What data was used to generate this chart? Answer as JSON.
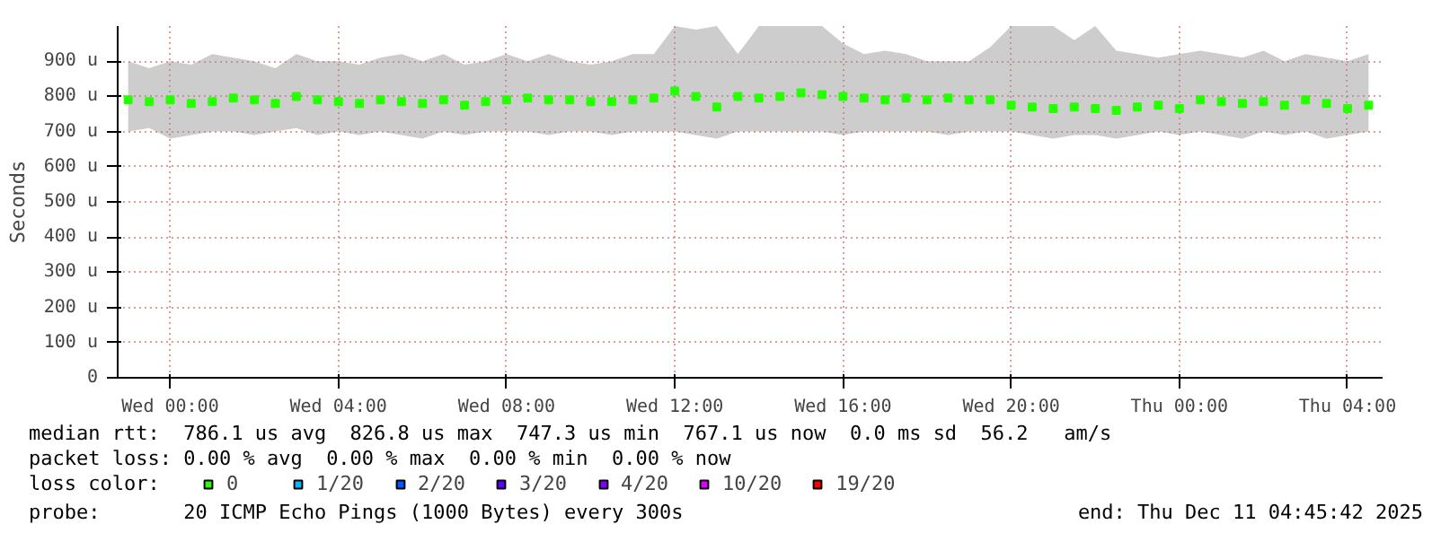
{
  "chart_data": {
    "type": "scatter",
    "ylabel": "Seconds",
    "marker": "square",
    "grid": true,
    "legend": "bottom",
    "legend_title": "loss color:",
    "xlim": [
      "2025-12-09T22:45",
      "2025-12-11T04:50"
    ],
    "xticks": [
      {
        "value": "2025-12-10T00:00",
        "label": "Wed 00:00"
      },
      {
        "value": "2025-12-10T04:00",
        "label": "Wed 04:00"
      },
      {
        "value": "2025-12-10T08:00",
        "label": "Wed 08:00"
      },
      {
        "value": "2025-12-10T12:00",
        "label": "Wed 12:00"
      },
      {
        "value": "2025-12-10T16:00",
        "label": "Wed 16:00"
      },
      {
        "value": "2025-12-10T20:00",
        "label": "Wed 20:00"
      },
      {
        "value": "2025-12-11T00:00",
        "label": "Thu 00:00"
      },
      {
        "value": "2025-12-11T04:00",
        "label": "Thu 04:00"
      }
    ],
    "ylim": [
      0,
      1000
    ],
    "yticks": [
      0,
      {
        "value": 100,
        "label": "100 u"
      },
      {
        "value": 200,
        "label": "200 u"
      },
      {
        "value": 300,
        "label": "300 u"
      },
      {
        "value": 400,
        "label": "400 u"
      },
      {
        "value": 500,
        "label": "500 u"
      },
      {
        "value": 600,
        "label": "600 u"
      },
      {
        "value": 700,
        "label": "700 u"
      },
      {
        "value": 800,
        "label": "800 u"
      },
      {
        "value": 900,
        "label": "900 u"
      }
    ],
    "x": [
      "2025-12-09T23:00",
      "2025-12-09T23:30",
      "2025-12-10T00:00",
      "2025-12-10T00:30",
      "2025-12-10T01:00",
      "2025-12-10T01:30",
      "2025-12-10T02:00",
      "2025-12-10T02:30",
      "2025-12-10T03:00",
      "2025-12-10T03:30",
      "2025-12-10T04:00",
      "2025-12-10T04:30",
      "2025-12-10T05:00",
      "2025-12-10T05:30",
      "2025-12-10T06:00",
      "2025-12-10T06:30",
      "2025-12-10T07:00",
      "2025-12-10T07:30",
      "2025-12-10T08:00",
      "2025-12-10T08:30",
      "2025-12-10T09:00",
      "2025-12-10T09:30",
      "2025-12-10T10:00",
      "2025-12-10T10:30",
      "2025-12-10T11:00",
      "2025-12-10T11:30",
      "2025-12-10T12:00",
      "2025-12-10T12:30",
      "2025-12-10T13:00",
      "2025-12-10T13:30",
      "2025-12-10T14:00",
      "2025-12-10T14:30",
      "2025-12-10T15:00",
      "2025-12-10T15:30",
      "2025-12-10T16:00",
      "2025-12-10T16:30",
      "2025-12-10T17:00",
      "2025-12-10T17:30",
      "2025-12-10T18:00",
      "2025-12-10T18:30",
      "2025-12-10T19:00",
      "2025-12-10T19:30",
      "2025-12-10T20:00",
      "2025-12-10T20:30",
      "2025-12-10T21:00",
      "2025-12-10T21:30",
      "2025-12-10T22:00",
      "2025-12-10T22:30",
      "2025-12-10T23:00",
      "2025-12-10T23:30",
      "2025-12-11T00:00",
      "2025-12-11T00:30",
      "2025-12-11T01:00",
      "2025-12-11T01:30",
      "2025-12-11T02:00",
      "2025-12-11T02:30",
      "2025-12-11T03:00",
      "2025-12-11T03:30",
      "2025-12-11T04:00",
      "2025-12-11T04:30"
    ],
    "series": [
      {
        "name": "0",
        "color": "#26ff00",
        "values": [
          790,
          785,
          790,
          780,
          785,
          795,
          790,
          780,
          800,
          790,
          785,
          780,
          790,
          785,
          780,
          790,
          775,
          785,
          790,
          795,
          790,
          790,
          785,
          785,
          790,
          795,
          815,
          800,
          770,
          800,
          795,
          800,
          810,
          805,
          800,
          795,
          790,
          795,
          790,
          795,
          790,
          790,
          775,
          770,
          765,
          770,
          765,
          760,
          770,
          775,
          765,
          790,
          785,
          780,
          785,
          775,
          790,
          780,
          765,
          775
        ],
        "lower": [
          700,
          710,
          680,
          690,
          700,
          700,
          690,
          700,
          710,
          690,
          700,
          690,
          700,
          690,
          680,
          700,
          690,
          700,
          700,
          700,
          690,
          700,
          700,
          690,
          700,
          700,
          700,
          690,
          680,
          700,
          700,
          700,
          700,
          700,
          690,
          700,
          700,
          700,
          700,
          690,
          700,
          700,
          700,
          690,
          680,
          690,
          690,
          680,
          690,
          700,
          690,
          700,
          690,
          680,
          700,
          690,
          700,
          680,
          690,
          700
        ],
        "upper": [
          900,
          880,
          900,
          890,
          920,
          910,
          900,
          880,
          920,
          900,
          900,
          890,
          910,
          920,
          900,
          920,
          890,
          900,
          920,
          900,
          920,
          900,
          890,
          900,
          920,
          920,
          1000,
          990,
          1000,
          920,
          1000,
          1000,
          1000,
          1000,
          950,
          920,
          930,
          920,
          900,
          900,
          900,
          940,
          1000,
          1000,
          1000,
          960,
          1000,
          930,
          920,
          910,
          920,
          930,
          920,
          910,
          930,
          900,
          920,
          910,
          900,
          920
        ]
      },
      {
        "name": "1/20",
        "color": "#00b8ff",
        "values": [
          null,
          null,
          null,
          null,
          null,
          null,
          null,
          null,
          null,
          null,
          null,
          null,
          null,
          null,
          null,
          null,
          null,
          null,
          null,
          null,
          null,
          null,
          null,
          null,
          null,
          null,
          null,
          null,
          null,
          null,
          null,
          null,
          null,
          null,
          null,
          null,
          null,
          null,
          null,
          null,
          null,
          null,
          null,
          null,
          null,
          null,
          null,
          null,
          null,
          null,
          null,
          null,
          null,
          null,
          null,
          null,
          null,
          null,
          null,
          null
        ]
      },
      {
        "name": "2/20",
        "color": "#0059ff",
        "values": [
          null,
          null,
          null,
          null,
          null,
          null,
          null,
          null,
          null,
          null,
          null,
          null,
          null,
          null,
          null,
          null,
          null,
          null,
          null,
          null,
          null,
          null,
          null,
          null,
          null,
          null,
          null,
          null,
          null,
          null,
          null,
          null,
          null,
          null,
          null,
          null,
          null,
          null,
          null,
          null,
          null,
          null,
          null,
          null,
          null,
          null,
          null,
          null,
          null,
          null,
          null,
          null,
          null,
          null,
          null,
          null,
          null,
          null,
          null,
          null
        ]
      },
      {
        "name": "3/20",
        "color": "#5e00ff",
        "values": [
          null,
          null,
          null,
          null,
          null,
          null,
          null,
          null,
          null,
          null,
          null,
          null,
          null,
          null,
          null,
          null,
          null,
          null,
          null,
          null,
          null,
          null,
          null,
          null,
          null,
          null,
          null,
          null,
          null,
          null,
          null,
          null,
          null,
          null,
          null,
          null,
          null,
          null,
          null,
          null,
          null,
          null,
          null,
          null,
          null,
          null,
          null,
          null,
          null,
          null,
          null,
          null,
          null,
          null,
          null,
          null,
          null,
          null,
          null,
          null
        ]
      },
      {
        "name": "4/20",
        "color": "#7e00ff",
        "values": [
          null,
          null,
          null,
          null,
          null,
          null,
          null,
          null,
          null,
          null,
          null,
          null,
          null,
          null,
          null,
          null,
          null,
          null,
          null,
          null,
          null,
          null,
          null,
          null,
          null,
          null,
          null,
          null,
          null,
          null,
          null,
          null,
          null,
          null,
          null,
          null,
          null,
          null,
          null,
          null,
          null,
          null,
          null,
          null,
          null,
          null,
          null,
          null,
          null,
          null,
          null,
          null,
          null,
          null,
          null,
          null,
          null,
          null,
          null,
          null
        ]
      },
      {
        "name": "10/20",
        "color": "#dd00ff",
        "values": [
          null,
          null,
          null,
          null,
          null,
          null,
          null,
          null,
          null,
          null,
          null,
          null,
          null,
          null,
          null,
          null,
          null,
          null,
          null,
          null,
          null,
          null,
          null,
          null,
          null,
          null,
          null,
          null,
          null,
          null,
          null,
          null,
          null,
          null,
          null,
          null,
          null,
          null,
          null,
          null,
          null,
          null,
          null,
          null,
          null,
          null,
          null,
          null,
          null,
          null,
          null,
          null,
          null,
          null,
          null,
          null,
          null,
          null,
          null,
          null
        ]
      },
      {
        "name": "19/20",
        "color": "#ff0000",
        "values": [
          null,
          null,
          null,
          null,
          null,
          null,
          null,
          null,
          null,
          null,
          null,
          null,
          null,
          null,
          null,
          null,
          null,
          null,
          null,
          null,
          null,
          null,
          null,
          null,
          null,
          null,
          null,
          null,
          null,
          null,
          null,
          null,
          null,
          null,
          null,
          null,
          null,
          null,
          null,
          null,
          null,
          null,
          null,
          null,
          null,
          null,
          null,
          null,
          null,
          null,
          null,
          null,
          null,
          null,
          null,
          null,
          null,
          null,
          null,
          null
        ]
      }
    ],
    "annotations": [
      "median rtt:  786.1 us avg  826.8 us max  747.3 us min  767.1 us now  0.0 ms sd  56.2   am/s",
      "packet loss: 0.00 % avg  0.00 % max  0.00 % min  0.00 % now",
      "probe:       20 ICMP Echo Pings (1000 Bytes) every 300s",
      "end: Thu Dec 11 04:45:42 2025"
    ]
  }
}
